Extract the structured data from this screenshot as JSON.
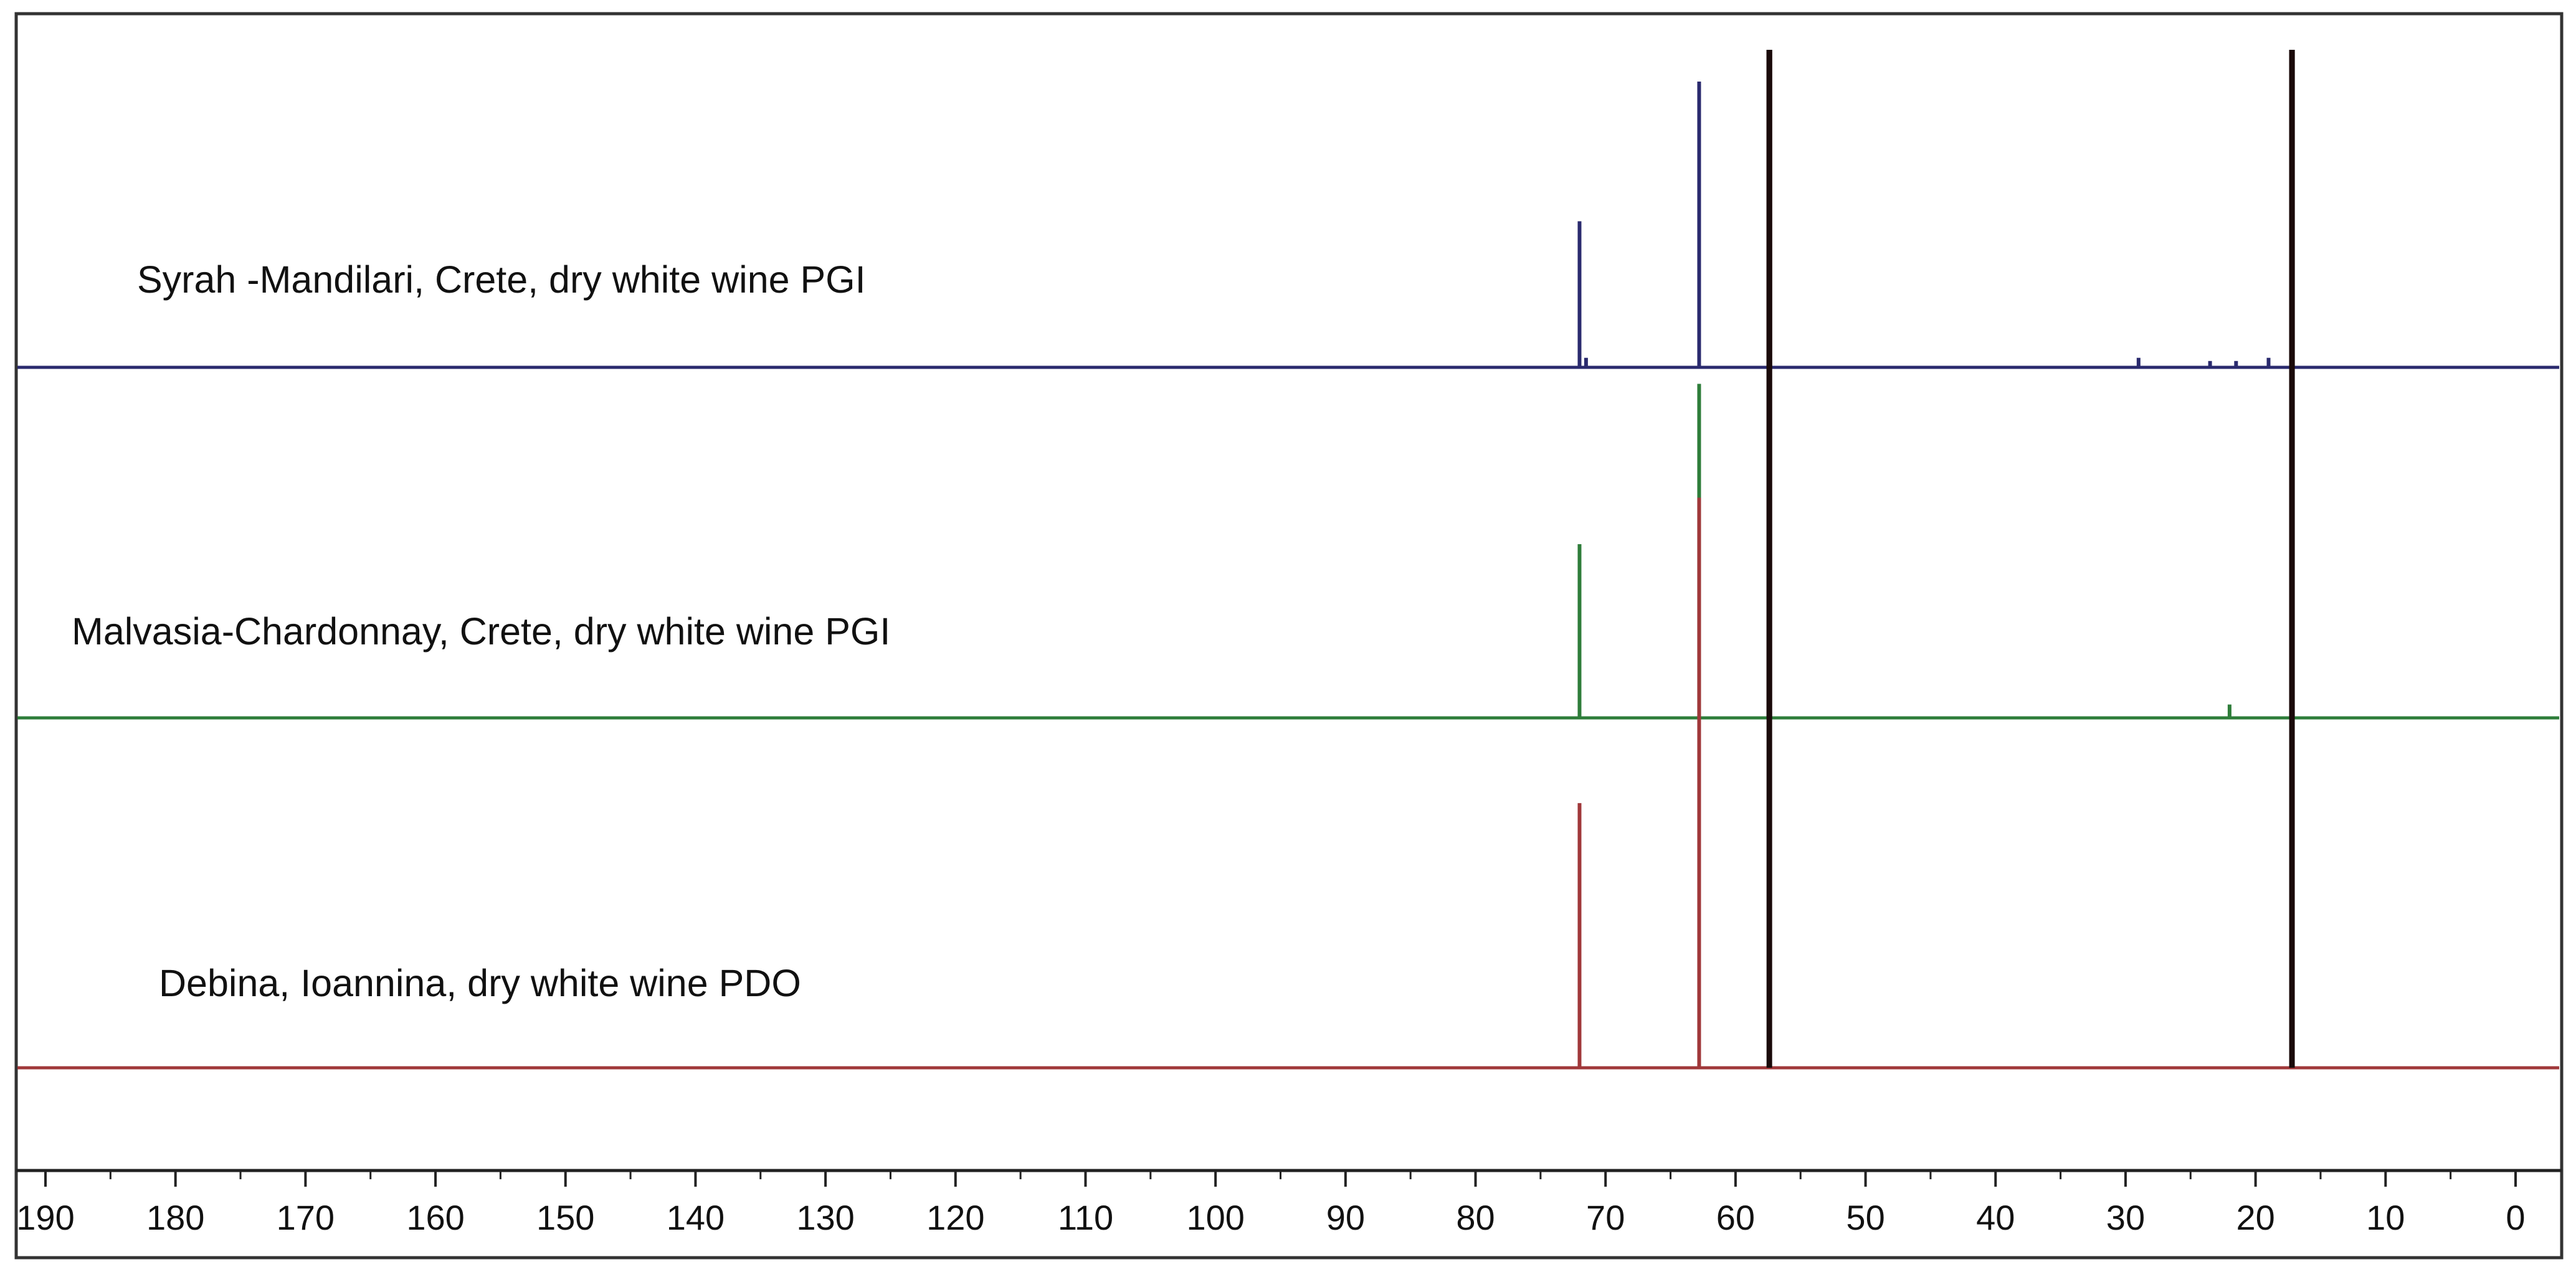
{
  "chart_data": {
    "type": "line",
    "title": "",
    "xlabel": "",
    "ylabel": "",
    "x_reversed": true,
    "xlim": [
      192,
      -2
    ],
    "x_ticks": [
      190,
      180,
      170,
      160,
      150,
      140,
      130,
      120,
      110,
      100,
      90,
      80,
      70,
      60,
      50,
      40,
      30,
      20,
      10,
      0
    ],
    "grid": false,
    "legend": "none",
    "series": [
      {
        "name": "Syrah -Mandilari, Crete, dry white wine PGI",
        "color": "#2a2a6e",
        "peaks": [
          {
            "x": 72.0,
            "height": 0.46
          },
          {
            "x": 71.5,
            "height": 0.03
          },
          {
            "x": 62.8,
            "height": 0.9
          },
          {
            "x": 57.4,
            "height": 1.0
          },
          {
            "x": 29.0,
            "height": 0.03
          },
          {
            "x": 23.5,
            "height": 0.02
          },
          {
            "x": 21.5,
            "height": 0.02
          },
          {
            "x": 19.0,
            "height": 0.03
          },
          {
            "x": 17.2,
            "height": 1.0
          }
        ]
      },
      {
        "name": "Malvasia-Chardonnay, Crete, dry white wine PGI",
        "color": "#2e7d3a",
        "peaks": [
          {
            "x": 72.0,
            "height": 0.26
          },
          {
            "x": 62.8,
            "height": 0.5
          },
          {
            "x": 57.4,
            "height": 1.0
          },
          {
            "x": 22.0,
            "height": 0.02
          },
          {
            "x": 17.2,
            "height": 1.0
          }
        ]
      },
      {
        "name": "Debina, Ioannina, dry white wine PDO",
        "color": "#a0383a",
        "peaks": [
          {
            "x": 72.0,
            "height": 0.26
          },
          {
            "x": 62.8,
            "height": 0.56
          },
          {
            "x": 57.4,
            "height": 1.0
          },
          {
            "x": 17.2,
            "height": 1.0
          }
        ]
      }
    ]
  }
}
